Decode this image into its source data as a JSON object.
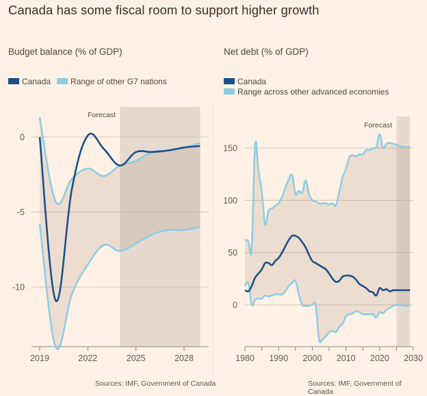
{
  "title": "Canada has some fiscal room to support higher growth",
  "colors": {
    "background": "#FFF1E5",
    "canada": "#1D4F87",
    "range": "#8FCDE4",
    "band_fill": "#E5DBD2",
    "forecast_fill": "#D2C7BF",
    "grid": "#CFC3B8",
    "axis": "#8C857F"
  },
  "chart_data": [
    {
      "type": "line",
      "title": "Budget balance (% of GDP)",
      "legend": [
        "Canada",
        "Range of other G7 nations"
      ],
      "legend_placement": "top-left",
      "annotation": "Forecast",
      "forecast_range": [
        2024,
        2029
      ],
      "xlabel": "",
      "ylabel": "",
      "xlim": [
        2018.9,
        2030.2
      ],
      "ylim": [
        -14,
        2
      ],
      "x_ticks": [
        2019,
        2022,
        2025,
        2028
      ],
      "y_ticks": [
        0,
        -5,
        -10
      ],
      "y_tick_labels": [
        "0",
        "-5",
        "-10"
      ],
      "grid": true,
      "source": "Sources: IMF, Government of Canada",
      "x": [
        2019,
        2020,
        2021,
        2022,
        2023,
        2024,
        2025,
        2026,
        2027,
        2028,
        2029
      ],
      "series": [
        {
          "name": "Canada",
          "values": [
            0.0,
            -10.9,
            -3.5,
            0.1,
            -0.8,
            -1.9,
            -1.0,
            -1.0,
            -0.9,
            -0.7,
            -0.6
          ]
        },
        {
          "name": "Range upper",
          "values": [
            1.3,
            -4.3,
            -2.8,
            -2.1,
            -2.6,
            -1.9,
            -1.6,
            -1.0,
            -0.9,
            -0.7,
            -0.4
          ]
        },
        {
          "name": "Range lower",
          "values": [
            -5.8,
            -14.0,
            -10.5,
            -8.5,
            -7.2,
            -7.6,
            -7.1,
            -6.5,
            -6.2,
            -6.2,
            -6.0
          ]
        }
      ]
    },
    {
      "type": "line",
      "title": "Net debt (% of GDP)",
      "legend": [
        "Canada",
        "Range across other advanced economies"
      ],
      "legend_placement": "top-left",
      "annotation": "Forecast",
      "forecast_range": [
        2025,
        2029
      ],
      "xlabel": "",
      "ylabel": "",
      "xlim": [
        1980,
        2030
      ],
      "ylim": [
        -40,
        175
      ],
      "x_ticks": [
        1980,
        1985,
        1990,
        1995,
        2000,
        2005,
        2010,
        2015,
        2020,
        2025,
        2030
      ],
      "x_tick_labels": [
        "1980",
        "",
        "1990",
        "",
        "2000",
        "",
        "2010",
        "",
        "2020",
        "",
        "2030"
      ],
      "y_ticks": [
        150,
        100,
        50,
        0
      ],
      "y_tick_labels": [
        "150",
        "100",
        "50",
        "0"
      ],
      "grid": true,
      "source": "Sources: IMF, Government of Canada",
      "x": [
        1980,
        1981,
        1982,
        1983,
        1984,
        1985,
        1986,
        1987,
        1988,
        1989,
        1990,
        1991,
        1992,
        1993,
        1994,
        1995,
        1996,
        1997,
        1998,
        1999,
        2000,
        2001,
        2002,
        2003,
        2004,
        2005,
        2006,
        2007,
        2008,
        2009,
        2010,
        2011,
        2012,
        2013,
        2014,
        2015,
        2016,
        2017,
        2018,
        2019,
        2020,
        2021,
        2022,
        2023,
        2024,
        2025,
        2026,
        2027,
        2028,
        2029
      ],
      "series": [
        {
          "name": "Canada",
          "values": [
            14,
            13,
            18,
            26,
            30,
            34,
            40,
            40,
            38,
            42,
            45,
            50,
            56,
            62,
            66,
            66,
            64,
            60,
            55,
            48,
            42,
            40,
            38,
            36,
            34,
            30,
            25,
            22,
            23,
            27,
            28,
            28,
            27,
            24,
            20,
            18,
            16,
            13,
            12,
            9,
            16,
            14,
            15,
            13,
            14,
            14,
            14,
            14,
            14,
            14
          ]
        },
        {
          "name": "Range upper",
          "values": [
            62,
            61,
            54,
            153,
            128,
            108,
            77,
            90,
            92,
            95,
            97,
            103,
            112,
            120,
            124,
            106,
            109,
            107,
            119,
            106,
            100,
            99,
            97,
            97,
            97,
            96,
            97,
            95,
            108,
            122,
            130,
            141,
            143,
            142,
            144,
            144,
            148,
            148,
            150,
            151,
            163,
            150,
            154,
            155,
            154,
            153,
            152,
            151,
            151,
            151
          ]
        },
        {
          "name": "Range lower",
          "values": [
            18,
            21,
            0,
            5,
            6,
            6,
            9,
            8,
            9,
            10,
            10,
            10,
            13,
            18,
            21,
            23,
            10,
            0,
            -1,
            -1,
            0,
            0,
            -33,
            -33,
            -30,
            -26,
            -25,
            -26,
            -21,
            -18,
            -11,
            -9,
            -8,
            -6,
            -7,
            -9,
            -9,
            -9,
            -9,
            -12,
            -7,
            -8,
            -5,
            -3,
            -1,
            0,
            0,
            -1,
            -1,
            -1
          ]
        }
      ]
    }
  ]
}
